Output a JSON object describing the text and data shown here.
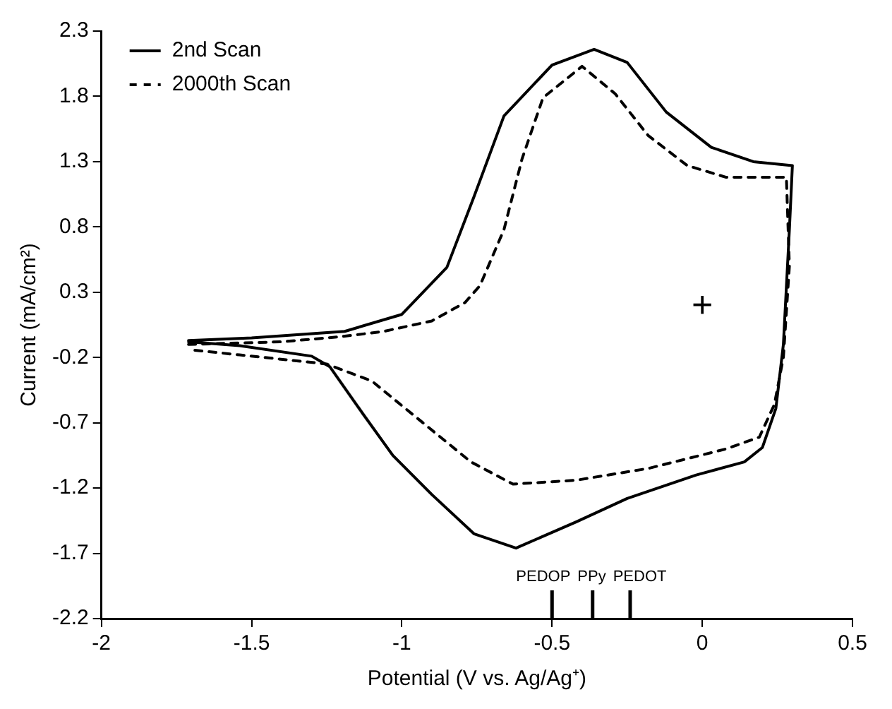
{
  "chart_data": {
    "type": "line",
    "xlabel": "Potential (V vs. Ag/Ag⁺)",
    "ylabel": "Current (mA/cm²)",
    "xlim": [
      -2,
      0.5
    ],
    "xticks": [
      -2,
      -1.5,
      -1,
      -0.5,
      0,
      0.5
    ],
    "ylim": [
      -2.2,
      2.3
    ],
    "yticks": [
      -2.2,
      -1.7,
      -1.2,
      -0.7,
      -0.2,
      0.3,
      0.8,
      1.3,
      1.8,
      2.3
    ],
    "grid": false,
    "legend": "top left",
    "marker": "none",
    "series": [
      {
        "name": "2nd Scan",
        "color": "#000000",
        "line_style": "solid",
        "x": [
          -1.71,
          -1.5,
          -1.19,
          -1.0,
          -0.85,
          -0.76,
          -0.66,
          -0.5,
          -0.36,
          -0.25,
          -0.12,
          0.03,
          0.17,
          0.3,
          0.29,
          0.27,
          0.245,
          0.2,
          0.14,
          -0.02,
          -0.25,
          -0.42,
          -0.62,
          -0.76,
          -0.9,
          -1.03,
          -1.13,
          -1.24,
          -1.3,
          -1.54,
          -1.71
        ],
        "values": [
          -0.07,
          -0.05,
          0.0,
          0.13,
          0.49,
          1.03,
          1.65,
          2.04,
          2.16,
          2.06,
          1.68,
          1.41,
          1.3,
          1.27,
          0.78,
          -0.1,
          -0.59,
          -0.89,
          -1.0,
          -1.1,
          -1.28,
          -1.46,
          -1.66,
          -1.55,
          -1.25,
          -0.95,
          -0.63,
          -0.27,
          -0.19,
          -0.11,
          -0.08
        ]
      },
      {
        "name": "2000th Scan",
        "color": "#000000",
        "line_style": "dashed",
        "x": [
          -1.71,
          -1.4,
          -1.2,
          -1.06,
          -0.9,
          -0.79,
          -0.74,
          -0.66,
          -0.6,
          -0.53,
          -0.4,
          -0.29,
          -0.18,
          -0.05,
          0.08,
          0.28,
          0.29,
          0.27,
          0.24,
          0.19,
          0.08,
          -0.18,
          -0.42,
          -0.63,
          -0.77,
          -0.93,
          -1.1,
          -1.25,
          -1.54,
          -1.71
        ],
        "values": [
          -0.1,
          -0.08,
          -0.04,
          0.0,
          0.08,
          0.22,
          0.35,
          0.78,
          1.32,
          1.79,
          2.03,
          1.82,
          1.5,
          1.27,
          1.18,
          1.18,
          0.5,
          -0.2,
          -0.56,
          -0.81,
          -0.9,
          -1.05,
          -1.14,
          -1.17,
          -1.0,
          -0.7,
          -0.38,
          -0.25,
          -0.18,
          -0.14
        ]
      }
    ],
    "ref_lines": [
      {
        "axis": "x",
        "value": -0.5,
        "label": "PEDOP"
      },
      {
        "axis": "x",
        "value": -0.365,
        "label": "PPy"
      },
      {
        "axis": "x",
        "value": -0.24,
        "label": "PEDOT"
      }
    ],
    "annotations": [
      "+"
    ]
  }
}
